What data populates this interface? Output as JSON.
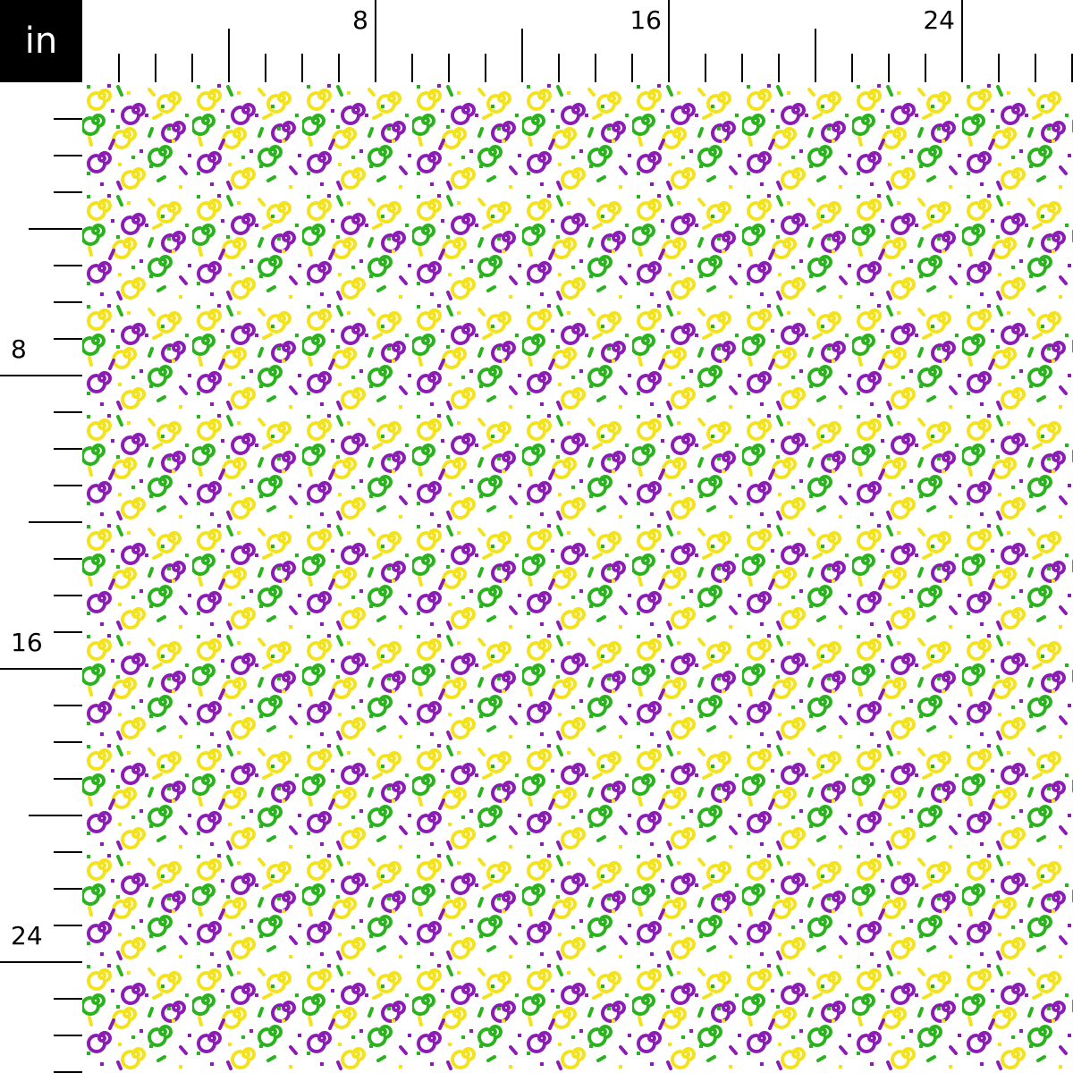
{
  "unit_label": "in",
  "top_ruler": {
    "labels": [
      {
        "inch": 8,
        "text": "8"
      },
      {
        "inch": 16,
        "text": "16"
      },
      {
        "inch": 24,
        "text": "24"
      }
    ]
  },
  "left_ruler": {
    "labels": [
      {
        "inch": 8,
        "text": "8"
      },
      {
        "inch": 16,
        "text": "16"
      },
      {
        "inch": 24,
        "text": "24"
      }
    ]
  },
  "fabric": {
    "pattern": "confetti swirls",
    "colors": {
      "yellow": "#f3e21c",
      "green": "#2bb31f",
      "purple": "#8b1db5",
      "background": "#ffffff"
    }
  }
}
